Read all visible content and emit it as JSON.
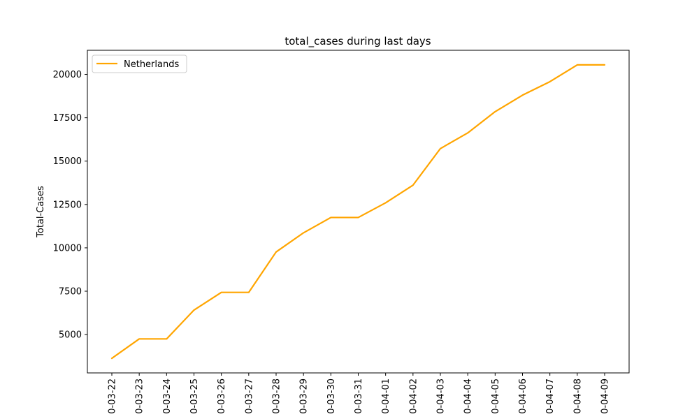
{
  "chart_data": {
    "type": "line",
    "title": "total_cases during last days",
    "xlabel": "",
    "ylabel": "Total-Cases",
    "categories": [
      "0-03-22",
      "0-03-23",
      "0-03-24",
      "0-03-25",
      "0-03-26",
      "0-03-27",
      "0-03-28",
      "0-03-29",
      "0-03-30",
      "0-03-31",
      "0-04-01",
      "0-04-02",
      "0-04-03",
      "0-04-04",
      "0-04-05",
      "0-04-06",
      "0-04-07",
      "0-04-08",
      "0-04-09"
    ],
    "series": [
      {
        "name": "Netherlands",
        "color": "#ffa500",
        "values": [
          3631,
          4749,
          4749,
          6412,
          7431,
          7431,
          9762,
          10866,
          11750,
          11750,
          12595,
          13614,
          15723,
          16627,
          17851,
          18803,
          19580,
          20549,
          20549
        ]
      }
    ],
    "yticks": [
      5000,
      7500,
      10000,
      12500,
      15000,
      17500,
      20000
    ],
    "ylim": [
      2789,
      21391
    ],
    "grid": false,
    "legend_position": "top-left"
  }
}
